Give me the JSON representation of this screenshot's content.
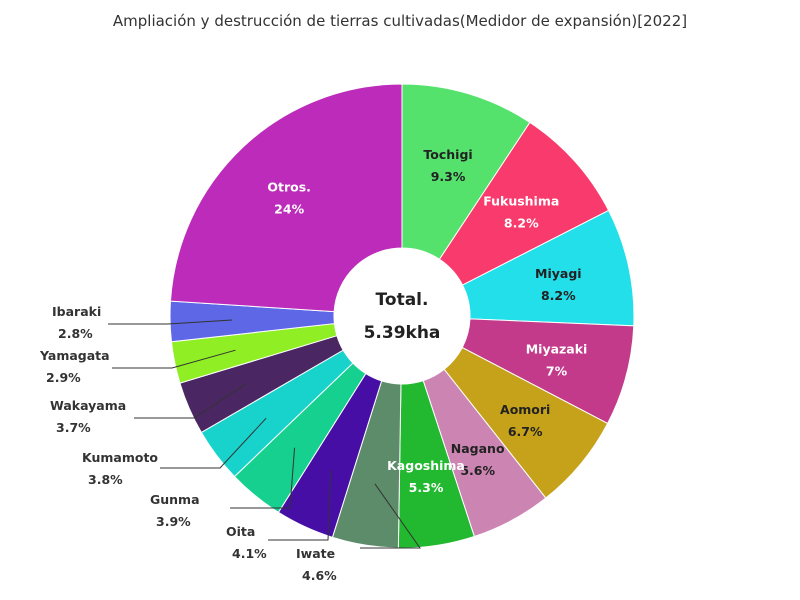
{
  "chart_data": {
    "type": "pie",
    "title": "Ampliación y destrucción de tierras cultivadas(Medidor de expansión)[2022]",
    "center_label": "Total.",
    "center_value": "5.39kha",
    "slices": [
      {
        "label": "Tochigi",
        "value": 9.3,
        "display": "9.3%",
        "color": "#54e26d",
        "text_color": "#222222"
      },
      {
        "label": "Fukushima",
        "value": 8.2,
        "display": "8.2%",
        "color": "#f83a6c",
        "text_color": "#ffffff"
      },
      {
        "label": "Miyagi",
        "value": 8.2,
        "display": "8.2%",
        "color": "#23dfe9",
        "text_color": "#222222"
      },
      {
        "label": "Miyazaki",
        "value": 7.0,
        "display": "7%",
        "color": "#c33a8b",
        "text_color": "#ffffff"
      },
      {
        "label": "Aomori",
        "value": 6.7,
        "display": "6.7%",
        "color": "#c6a21a",
        "text_color": "#222222"
      },
      {
        "label": "Nagano",
        "value": 5.6,
        "display": "5.6%",
        "color": "#cc84b2",
        "text_color": "#222222"
      },
      {
        "label": "Kagoshima",
        "value": 5.3,
        "display": "5.3%",
        "color": "#22b830",
        "text_color": "#ffffff"
      },
      {
        "label": "Iwate",
        "value": 4.6,
        "display": "4.6%",
        "color": "#5d8c6a",
        "text_color": "#222222"
      },
      {
        "label": "Oita",
        "value": 4.1,
        "display": "4.1%",
        "color": "#470ea6",
        "text_color": "#222222"
      },
      {
        "label": "Gunma",
        "value": 3.9,
        "display": "3.9%",
        "color": "#16d08f",
        "text_color": "#222222"
      },
      {
        "label": "Kumamoto",
        "value": 3.8,
        "display": "3.8%",
        "color": "#18d3cb",
        "text_color": "#222222"
      },
      {
        "label": "Wakayama",
        "value": 3.7,
        "display": "3.7%",
        "color": "#4a2663",
        "text_color": "#222222"
      },
      {
        "label": "Yamagata",
        "value": 2.9,
        "display": "2.9%",
        "color": "#8fef24",
        "text_color": "#222222"
      },
      {
        "label": "Ibaraki",
        "value": 2.8,
        "display": "2.8%",
        "color": "#5e68e6",
        "text_color": "#222222"
      },
      {
        "label": "Otros.",
        "value": 24.0,
        "display": "24%",
        "color": "#bc2bb9",
        "text_color": "#ffffff"
      }
    ],
    "legend": "none"
  }
}
